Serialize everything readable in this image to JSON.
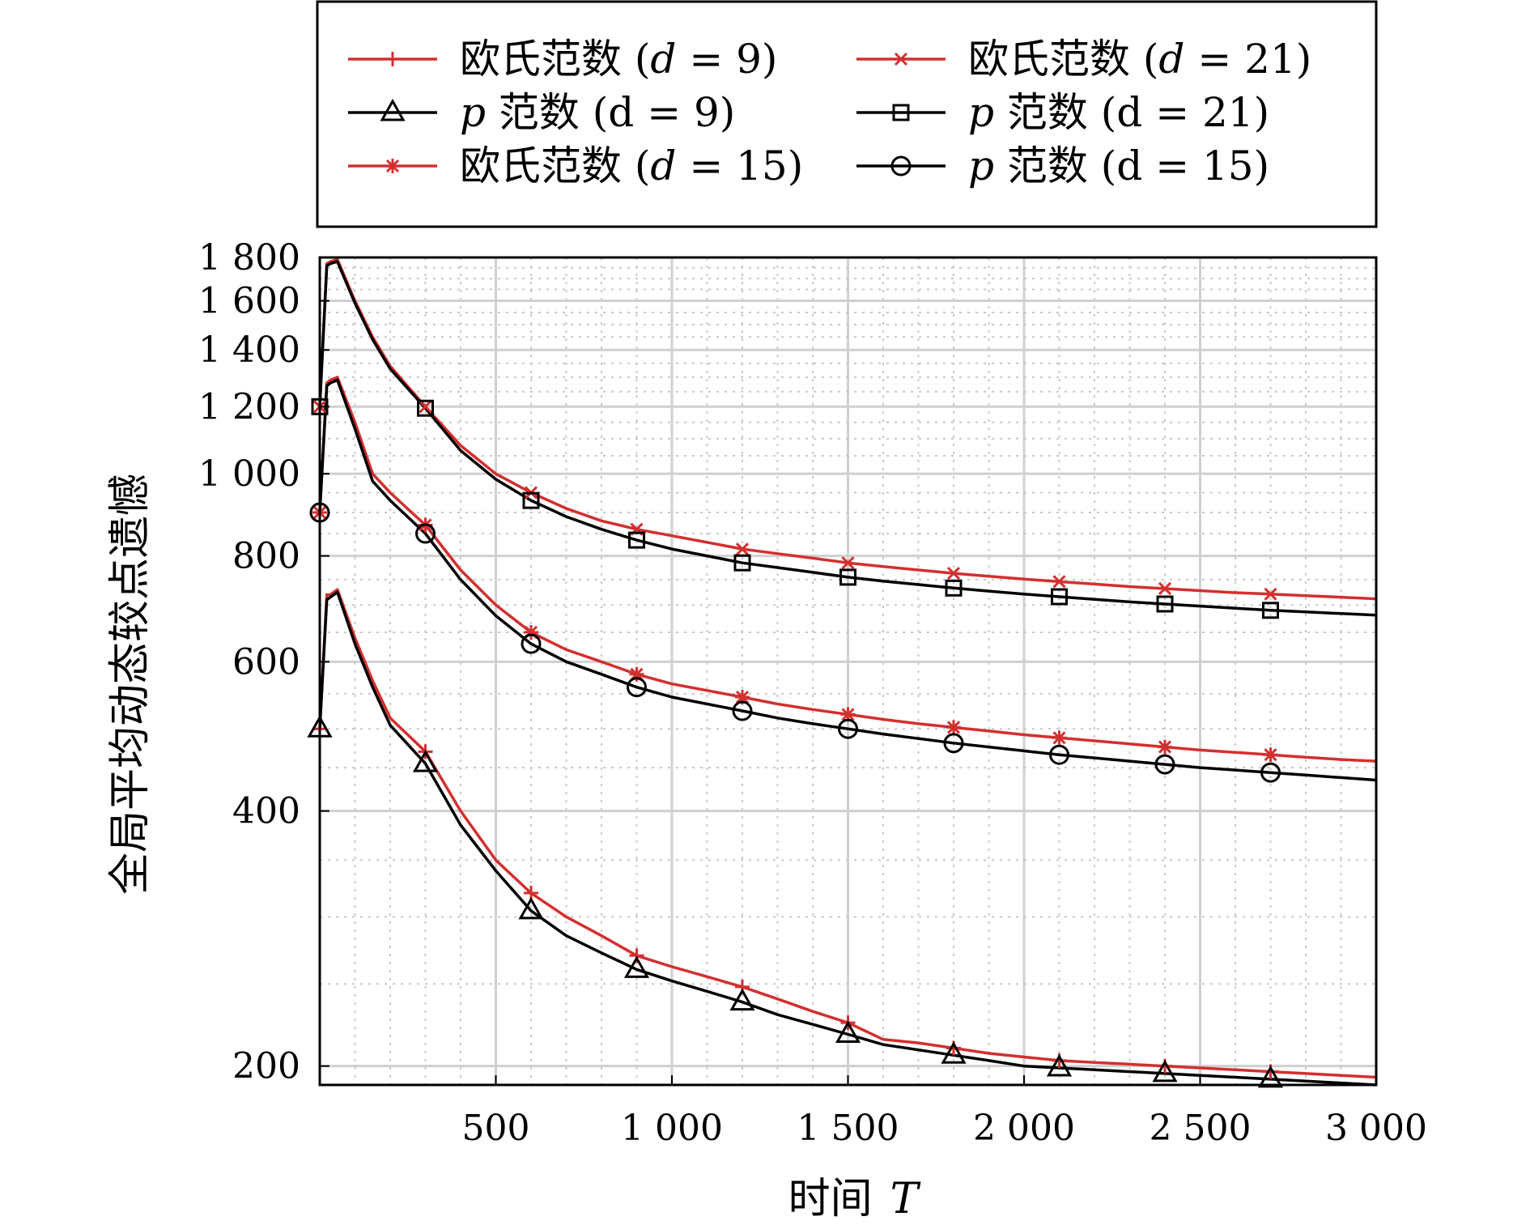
{
  "chart_data": {
    "type": "line",
    "title": "",
    "xlabel": "时间",
    "xlabel_var": "T",
    "ylabel": "全局平均动态较点遗憾",
    "y_scale": "log",
    "xlim": [
      0,
      3000
    ],
    "ylim": [
      190,
      1800
    ],
    "x_ticks": [
      500,
      1000,
      1500,
      2000,
      2500,
      3000
    ],
    "x_tick_labels": [
      "500",
      "1 000",
      "1 500",
      "2 000",
      "2 500",
      "3 000"
    ],
    "y_ticks": [
      200,
      400,
      600,
      800,
      1000,
      1200,
      1400,
      1600,
      1800
    ],
    "y_tick_labels": [
      "200",
      "400",
      "600",
      "800",
      "1 000",
      "1 200",
      "1 400",
      "1 600",
      "1 800"
    ],
    "grid": true,
    "legend_position": "top (above plot, two columns)",
    "x": [
      0,
      20,
      30,
      50,
      100,
      150,
      200,
      300,
      400,
      500,
      600,
      700,
      800,
      900,
      1000,
      1100,
      1200,
      1300,
      1400,
      1500,
      1600,
      1700,
      1800,
      1900,
      2000,
      2100,
      2200,
      2300,
      2400,
      2500,
      2600,
      2700,
      2800,
      2900,
      3000
    ],
    "series": [
      {
        "name": "欧氏范数 (d = 9)",
        "legend_parts": [
          "欧氏范数 (",
          "d",
          " = 9)"
        ],
        "color": "#d32f2f",
        "marker": "plus",
        "values": [
          500,
          720,
          720,
          730,
          640,
          570,
          515,
          470,
          400,
          350,
          320,
          300,
          285,
          270,
          262,
          255,
          248,
          240,
          232,
          225,
          215,
          213,
          210,
          207,
          205,
          203,
          202,
          201,
          200,
          199,
          198,
          197,
          196,
          195,
          194
        ]
      },
      {
        "name": "p 范数 (d = 9)",
        "legend_parts": [
          "",
          "p",
          " 范数 (d = 9)"
        ],
        "color": "#000000",
        "marker": "triangle",
        "values": [
          500,
          710,
          715,
          725,
          630,
          560,
          505,
          455,
          385,
          340,
          305,
          285,
          272,
          260,
          252,
          245,
          238,
          230,
          224,
          218,
          212,
          209,
          206,
          203,
          200,
          199,
          198,
          197,
          196,
          195,
          194,
          193,
          192,
          191,
          190
        ]
      },
      {
        "name": "欧氏范数 (d = 15)",
        "legend_parts": [
          "欧氏范数 (",
          "d",
          " = 15)"
        ],
        "color": "#d32f2f",
        "marker": "asterisk",
        "values": [
          900,
          1280,
          1290,
          1300,
          1150,
          1000,
          950,
          870,
          770,
          700,
          650,
          620,
          600,
          580,
          565,
          555,
          545,
          535,
          527,
          520,
          513,
          507,
          502,
          497,
          492,
          488,
          484,
          480,
          476,
          472,
          469,
          466,
          463,
          460,
          458
        ]
      },
      {
        "name": "p 范数 (d = 15)",
        "legend_parts": [
          "",
          "p",
          " 范数 (d = 15)"
        ],
        "color": "#000000",
        "marker": "circle",
        "values": [
          900,
          1270,
          1280,
          1290,
          1130,
          980,
          930,
          850,
          750,
          680,
          630,
          600,
          580,
          560,
          545,
          535,
          525,
          515,
          507,
          500,
          493,
          487,
          481,
          476,
          471,
          466,
          462,
          458,
          454,
          450,
          447,
          444,
          441,
          438,
          435
        ]
      },
      {
        "name": "欧氏范数 (d = 21)",
        "legend_parts": [
          "欧氏范数 (",
          "d",
          " = 21)"
        ],
        "color": "#d32f2f",
        "marker": "cross",
        "values": [
          1200,
          1770,
          1780,
          1790,
          1600,
          1450,
          1340,
          1200,
          1080,
          1000,
          950,
          910,
          880,
          860,
          845,
          830,
          815,
          805,
          795,
          785,
          777,
          770,
          763,
          757,
          751,
          746,
          741,
          736,
          732,
          728,
          724,
          721,
          718,
          715,
          712
        ]
      },
      {
        "name": "p 范数 (d = 21)",
        "legend_parts": [
          "",
          "p",
          " 范数 (d = 21)"
        ],
        "color": "#000000",
        "marker": "square",
        "values": [
          1200,
          1760,
          1770,
          1780,
          1590,
          1440,
          1330,
          1195,
          1065,
          985,
          930,
          890,
          860,
          835,
          815,
          800,
          785,
          775,
          765,
          755,
          747,
          740,
          733,
          727,
          721,
          716,
          711,
          706,
          702,
          698,
          694,
          690,
          687,
          684,
          681
        ]
      }
    ],
    "marker_x": [
      0,
      300,
      600,
      900,
      1200,
      1500,
      1800,
      2100,
      2400,
      2700
    ]
  }
}
